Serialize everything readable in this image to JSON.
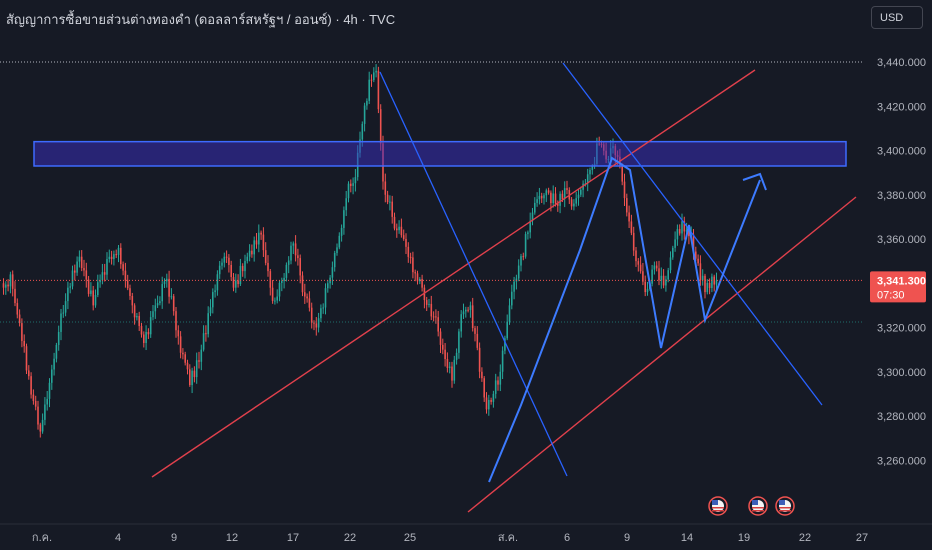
{
  "header": {
    "title": "สัญญาการซื้อขายส่วนต่างทองคำ (ดอลลาร์สหรัฐฯ / ออนซ์) · 4h · TVC",
    "currency_button": "USD"
  },
  "price_label": {
    "price": "3,341.300",
    "countdown": "07:30"
  },
  "colors": {
    "background": "#161a25",
    "up": "#26a69a",
    "down": "#ef5350",
    "channel_red": "#e0404c",
    "trend_blue": "#2962ff",
    "arrow_blue": "#3d7bff",
    "zone_fill": "#3a2ec4",
    "zone_border": "#3e6bff"
  },
  "icons": [
    "us-flag-icon",
    "us-flag-icon",
    "us-flag-icon"
  ],
  "chart_data": {
    "type": "candlestick",
    "title": "สัญญาการซื้อขายส่วนต่างทองคำ (ดอลลาร์สหรัฐฯ / ออนซ์) · 4h · TVC",
    "y_ticks": [
      "3,440.000",
      "3,420.000",
      "3,400.000",
      "3,380.000",
      "3,360.000",
      "3,340.000",
      "3,320.000",
      "3,300.000",
      "3,280.000",
      "3,260.000"
    ],
    "y_tick_values": [
      3440,
      3420,
      3400,
      3380,
      3360,
      3340,
      3320,
      3300,
      3280,
      3260
    ],
    "x_ticks": [
      "ก.ค.",
      "4",
      "9",
      "12",
      "17",
      "22",
      "25",
      "ส.ค.",
      "6",
      "9",
      "14",
      "19",
      "22",
      "27"
    ],
    "ylim": [
      3254,
      3446
    ],
    "grid": false,
    "last_price": 3341.3,
    "waypoints": [
      [
        0,
        3338
      ],
      [
        3,
        3344
      ],
      [
        7,
        3322
      ],
      [
        11,
        3298
      ],
      [
        16,
        3273
      ],
      [
        20,
        3295
      ],
      [
        24,
        3318
      ],
      [
        28,
        3338
      ],
      [
        33,
        3352
      ],
      [
        39,
        3330
      ],
      [
        43,
        3345
      ],
      [
        50,
        3356
      ],
      [
        56,
        3330
      ],
      [
        61,
        3313
      ],
      [
        66,
        3330
      ],
      [
        71,
        3342
      ],
      [
        76,
        3316
      ],
      [
        81,
        3294
      ],
      [
        86,
        3310
      ],
      [
        91,
        3336
      ],
      [
        96,
        3352
      ],
      [
        100,
        3338
      ],
      [
        106,
        3352
      ],
      [
        112,
        3362
      ],
      [
        117,
        3332
      ],
      [
        121,
        3341
      ],
      [
        126,
        3358
      ],
      [
        131,
        3334
      ],
      [
        136,
        3320
      ],
      [
        141,
        3340
      ],
      [
        147,
        3365
      ],
      [
        150,
        3385
      ],
      [
        153,
        3388
      ],
      [
        156,
        3412
      ],
      [
        159,
        3432
      ],
      [
        162,
        3436
      ],
      [
        165,
        3386
      ],
      [
        169,
        3370
      ],
      [
        174,
        3360
      ],
      [
        178,
        3345
      ],
      [
        182,
        3338
      ],
      [
        187,
        3325
      ],
      [
        191,
        3310
      ],
      [
        195,
        3296
      ],
      [
        199,
        3326
      ],
      [
        203,
        3330
      ],
      [
        207,
        3300
      ],
      [
        210,
        3283
      ],
      [
        213,
        3290
      ],
      [
        216,
        3300
      ],
      [
        220,
        3330
      ],
      [
        224,
        3348
      ],
      [
        228,
        3363
      ],
      [
        232,
        3378
      ],
      [
        236,
        3382
      ],
      [
        240,
        3376
      ],
      [
        244,
        3383
      ],
      [
        248,
        3376
      ],
      [
        252,
        3385
      ],
      [
        256,
        3393
      ],
      [
        259,
        3403
      ],
      [
        262,
        3396
      ],
      [
        265,
        3402
      ],
      [
        268,
        3393
      ],
      [
        271,
        3372
      ],
      [
        275,
        3350
      ],
      [
        279,
        3336
      ],
      [
        283,
        3348
      ],
      [
        287,
        3339
      ],
      [
        291,
        3356
      ],
      [
        295,
        3368
      ],
      [
        299,
        3362
      ],
      [
        302,
        3349
      ],
      [
        305,
        3336
      ],
      [
        308,
        3343
      ],
      [
        310,
        3340
      ]
    ],
    "annotations": {
      "resistance_zone": [
        3393,
        3404
      ],
      "lines": [
        {
          "name": "rising-channel-lower",
          "from": [
            26,
            3273
          ],
          "to": [
            356,
            3377
          ]
        },
        {
          "name": "rising-channel-upper",
          "from": [
            56,
            3282
          ],
          "to": [
            369,
            3436
          ]
        },
        {
          "name": "falling-trendline-1",
          "from": [
            3,
            3440
          ],
          "to": [
            73,
            3274
          ]
        },
        {
          "name": "falling-trendline-2",
          "from": [
            -2,
            3440
          ],
          "to": [
            108,
            3303
          ]
        }
      ]
    }
  }
}
